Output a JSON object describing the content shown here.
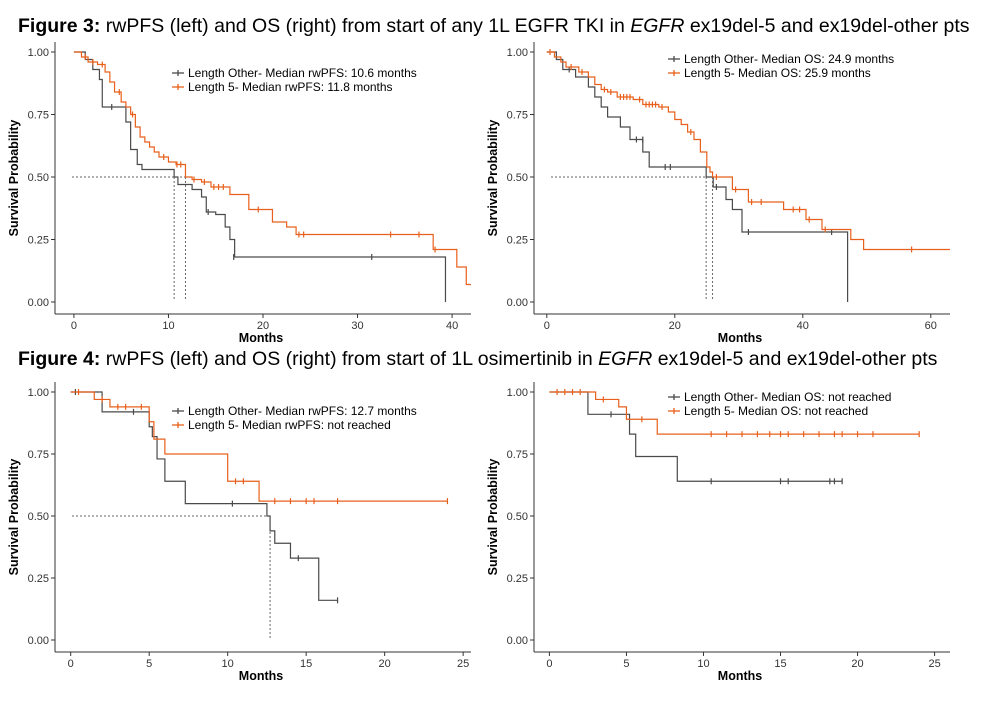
{
  "figure3": {
    "label": "Figure 3:",
    "text_a": " rwPFS (left) and OS (right) from start of any 1L EGFR TKI in ",
    "gene": "EGFR",
    "text_b": " ex19del-5 and ex19del-other pts"
  },
  "figure4": {
    "label": "Figure 4:",
    "text_a": " rwPFS (left) and OS (right) from start of 1L osimertinib in ",
    "gene": "EGFR",
    "text_b": " ex19del-5 and ex19del-other pts"
  },
  "colors": {
    "other": "#4a4a4a",
    "five": "#e8601c",
    "axis": "#333333",
    "ref": "#666666"
  },
  "chart_data": [
    {
      "type": "line",
      "subtype": "kaplan-meier",
      "xlabel": "Months",
      "ylabel": "Survival Probability",
      "xlim": [
        -2,
        42
      ],
      "ylim": [
        0,
        1
      ],
      "x_ticks": [
        0,
        10,
        20,
        30,
        40
      ],
      "y_ticks": [
        "0.00",
        "0.25",
        "0.50",
        "0.75",
        "1.00"
      ],
      "legend_position": "top-right",
      "median_lines": [
        10.6,
        11.8
      ],
      "series": [
        {
          "name": "Length Other- Median rwPFS: 10.6 months",
          "color_key": "other",
          "steps": [
            [
              0,
              1.0
            ],
            [
              1.2,
              0.97
            ],
            [
              2.0,
              0.93
            ],
            [
              2.7,
              0.89
            ],
            [
              3.0,
              0.78
            ],
            [
              5.5,
              0.72
            ],
            [
              6.0,
              0.61
            ],
            [
              6.7,
              0.55
            ],
            [
              7.2,
              0.53
            ],
            [
              10.6,
              0.5
            ],
            [
              11.0,
              0.47
            ],
            [
              12.5,
              0.45
            ],
            [
              13.5,
              0.42
            ],
            [
              14.0,
              0.36
            ],
            [
              15.0,
              0.35
            ],
            [
              16.0,
              0.3
            ],
            [
              16.5,
              0.25
            ],
            [
              17.0,
              0.18
            ],
            [
              39.3,
              0.18
            ],
            [
              39.3,
              0.0
            ]
          ],
          "censors": [
            [
              4.0,
              0.78
            ],
            [
              14.2,
              0.36
            ],
            [
              16.9,
              0.18
            ],
            [
              31.5,
              0.18
            ]
          ]
        },
        {
          "name": "Length 5- Median rwPFS: 11.8 months",
          "color_key": "five",
          "steps": [
            [
              0,
              1.0
            ],
            [
              0.8,
              0.98
            ],
            [
              1.5,
              0.96
            ],
            [
              2.5,
              0.95
            ],
            [
              3.3,
              0.92
            ],
            [
              3.8,
              0.88
            ],
            [
              4.3,
              0.84
            ],
            [
              5.0,
              0.8
            ],
            [
              5.5,
              0.78
            ],
            [
              6.0,
              0.75
            ],
            [
              6.5,
              0.7
            ],
            [
              7.0,
              0.66
            ],
            [
              7.5,
              0.64
            ],
            [
              8.0,
              0.62
            ],
            [
              8.5,
              0.6
            ],
            [
              9.0,
              0.58
            ],
            [
              10.0,
              0.56
            ],
            [
              10.8,
              0.55
            ],
            [
              11.8,
              0.5
            ],
            [
              12.5,
              0.49
            ],
            [
              13.5,
              0.48
            ],
            [
              14.5,
              0.46
            ],
            [
              16.5,
              0.43
            ],
            [
              18.5,
              0.37
            ],
            [
              21.0,
              0.32
            ],
            [
              22.5,
              0.3
            ],
            [
              23.5,
              0.27
            ],
            [
              38.0,
              0.21
            ],
            [
              40.5,
              0.14
            ],
            [
              41.5,
              0.07
            ],
            [
              42.0,
              0.07
            ]
          ],
          "censors": [
            [
              1.2,
              0.98
            ],
            [
              2.0,
              0.96
            ],
            [
              3.0,
              0.95
            ],
            [
              4.8,
              0.84
            ],
            [
              6.2,
              0.75
            ],
            [
              9.5,
              0.58
            ],
            [
              10.9,
              0.55
            ],
            [
              11.3,
              0.55
            ],
            [
              12.7,
              0.49
            ],
            [
              13.8,
              0.48
            ],
            [
              14.8,
              0.46
            ],
            [
              15.3,
              0.46
            ],
            [
              15.8,
              0.46
            ],
            [
              19.5,
              0.37
            ],
            [
              23.8,
              0.27
            ],
            [
              24.3,
              0.27
            ],
            [
              33.5,
              0.27
            ],
            [
              36.5,
              0.27
            ],
            [
              38.2,
              0.21
            ]
          ]
        }
      ]
    },
    {
      "type": "line",
      "subtype": "kaplan-meier",
      "xlabel": "Months",
      "ylabel": "Survival Probability",
      "xlim": [
        -2,
        63
      ],
      "ylim": [
        0,
        1
      ],
      "x_ticks": [
        0,
        20,
        40,
        60
      ],
      "y_ticks": [
        "0.00",
        "0.25",
        "0.50",
        "0.75",
        "1.00"
      ],
      "legend_position": "top-right",
      "median_lines": [
        24.9,
        25.9
      ],
      "series": [
        {
          "name": "Length Other- Median OS: 24.9 months",
          "color_key": "other",
          "steps": [
            [
              0,
              1.0
            ],
            [
              1.5,
              0.97
            ],
            [
              2.5,
              0.93
            ],
            [
              4.5,
              0.9
            ],
            [
              6.5,
              0.86
            ],
            [
              7.5,
              0.82
            ],
            [
              8.5,
              0.78
            ],
            [
              9.5,
              0.74
            ],
            [
              11.5,
              0.7
            ],
            [
              13.0,
              0.65
            ],
            [
              15.0,
              0.6
            ],
            [
              16.0,
              0.54
            ],
            [
              24.9,
              0.5
            ],
            [
              26.0,
              0.46
            ],
            [
              28.0,
              0.41
            ],
            [
              29.0,
              0.37
            ],
            [
              30.5,
              0.28
            ],
            [
              47.0,
              0.28
            ],
            [
              47.0,
              0.0
            ]
          ],
          "censors": [
            [
              3.5,
              0.93
            ],
            [
              14.0,
              0.65
            ],
            [
              15.0,
              0.65
            ],
            [
              18.5,
              0.54
            ],
            [
              19.3,
              0.54
            ],
            [
              26.5,
              0.46
            ],
            [
              31.5,
              0.28
            ],
            [
              44.5,
              0.28
            ]
          ]
        },
        {
          "name": "Length 5- Median OS: 25.9 months",
          "color_key": "five",
          "steps": [
            [
              0,
              1.0
            ],
            [
              1.2,
              0.98
            ],
            [
              2.2,
              0.96
            ],
            [
              3.0,
              0.94
            ],
            [
              5.0,
              0.92
            ],
            [
              6.5,
              0.9
            ],
            [
              7.5,
              0.87
            ],
            [
              8.5,
              0.85
            ],
            [
              9.5,
              0.84
            ],
            [
              11.0,
              0.82
            ],
            [
              13.5,
              0.81
            ],
            [
              15.0,
              0.79
            ],
            [
              17.5,
              0.78
            ],
            [
              19.0,
              0.76
            ],
            [
              20.0,
              0.73
            ],
            [
              21.0,
              0.71
            ],
            [
              22.0,
              0.68
            ],
            [
              23.0,
              0.65
            ],
            [
              24.0,
              0.6
            ],
            [
              25.0,
              0.54
            ],
            [
              25.5,
              0.52
            ],
            [
              25.9,
              0.5
            ],
            [
              29.0,
              0.45
            ],
            [
              31.5,
              0.4
            ],
            [
              37.0,
              0.37
            ],
            [
              40.5,
              0.33
            ],
            [
              43.0,
              0.29
            ],
            [
              47.5,
              0.25
            ],
            [
              49.5,
              0.21
            ],
            [
              63.0,
              0.21
            ]
          ],
          "censors": [
            [
              0.5,
              1.0
            ],
            [
              3.8,
              0.94
            ],
            [
              5.5,
              0.92
            ],
            [
              9.0,
              0.85
            ],
            [
              10.0,
              0.84
            ],
            [
              11.5,
              0.82
            ],
            [
              12.0,
              0.82
            ],
            [
              12.5,
              0.82
            ],
            [
              13.0,
              0.82
            ],
            [
              14.5,
              0.81
            ],
            [
              15.5,
              0.79
            ],
            [
              16.0,
              0.79
            ],
            [
              16.5,
              0.79
            ],
            [
              17.0,
              0.79
            ],
            [
              18.0,
              0.78
            ],
            [
              22.5,
              0.68
            ],
            [
              26.5,
              0.5
            ],
            [
              29.5,
              0.45
            ],
            [
              32.0,
              0.4
            ],
            [
              33.5,
              0.4
            ],
            [
              38.5,
              0.37
            ],
            [
              39.5,
              0.37
            ],
            [
              41.0,
              0.33
            ],
            [
              43.5,
              0.29
            ],
            [
              57.0,
              0.21
            ]
          ]
        }
      ]
    },
    {
      "type": "line",
      "subtype": "kaplan-meier",
      "xlabel": "Months",
      "ylabel": "Survival Probability",
      "xlim": [
        -1,
        25.5
      ],
      "ylim": [
        0,
        1
      ],
      "x_ticks": [
        0,
        5,
        10,
        15,
        20,
        25
      ],
      "y_ticks": [
        "0.00",
        "0.25",
        "0.50",
        "0.75",
        "1.00"
      ],
      "legend_position": "top-right",
      "median_lines": [
        12.7
      ],
      "series": [
        {
          "name": "Length Other- Median rwPFS: 12.7 months",
          "color_key": "other",
          "steps": [
            [
              0,
              1.0
            ],
            [
              2.0,
              0.92
            ],
            [
              5.0,
              0.86
            ],
            [
              5.2,
              0.82
            ],
            [
              5.5,
              0.73
            ],
            [
              6.0,
              0.64
            ],
            [
              7.3,
              0.55
            ],
            [
              12.5,
              0.5
            ],
            [
              12.7,
              0.44
            ],
            [
              13.0,
              0.39
            ],
            [
              14.0,
              0.33
            ],
            [
              15.8,
              0.16
            ],
            [
              17.0,
              0.16
            ]
          ],
          "censors": [
            [
              0.3,
              1.0
            ],
            [
              4.0,
              0.92
            ],
            [
              10.3,
              0.55
            ],
            [
              14.5,
              0.33
            ],
            [
              17.0,
              0.16
            ]
          ]
        },
        {
          "name": "Length 5- Median rwPFS: not reached",
          "color_key": "five",
          "steps": [
            [
              0,
              1.0
            ],
            [
              1.5,
              0.97
            ],
            [
              2.5,
              0.94
            ],
            [
              5.0,
              0.88
            ],
            [
              5.3,
              0.81
            ],
            [
              6.0,
              0.75
            ],
            [
              10.0,
              0.64
            ],
            [
              12.0,
              0.56
            ],
            [
              24.0,
              0.56
            ]
          ],
          "censors": [
            [
              0.5,
              1.0
            ],
            [
              2.0,
              0.97
            ],
            [
              3.0,
              0.94
            ],
            [
              3.5,
              0.94
            ],
            [
              4.5,
              0.94
            ],
            [
              10.5,
              0.64
            ],
            [
              11.0,
              0.64
            ],
            [
              13.0,
              0.56
            ],
            [
              14.0,
              0.56
            ],
            [
              15.0,
              0.56
            ],
            [
              15.5,
              0.56
            ],
            [
              17.0,
              0.56
            ],
            [
              24.0,
              0.56
            ]
          ]
        }
      ]
    },
    {
      "type": "line",
      "subtype": "kaplan-meier",
      "xlabel": "Months",
      "ylabel": "Survival Probability",
      "xlim": [
        -1,
        26
      ],
      "ylim": [
        0,
        1
      ],
      "x_ticks": [
        0,
        5,
        10,
        15,
        20,
        25
      ],
      "y_ticks": [
        "0.00",
        "0.25",
        "0.50",
        "0.75",
        "1.00"
      ],
      "legend_position": "top-right",
      "median_lines": [],
      "series": [
        {
          "name": "Length Other- Median OS: not reached",
          "color_key": "other",
          "steps": [
            [
              0,
              1.0
            ],
            [
              2.5,
              0.91
            ],
            [
              5.2,
              0.83
            ],
            [
              5.6,
              0.74
            ],
            [
              8.3,
              0.64
            ],
            [
              19.0,
              0.64
            ]
          ],
          "censors": [
            [
              4.0,
              0.91
            ],
            [
              10.5,
              0.64
            ],
            [
              15.0,
              0.64
            ],
            [
              15.5,
              0.64
            ],
            [
              18.2,
              0.64
            ],
            [
              18.5,
              0.64
            ],
            [
              19.0,
              0.64
            ]
          ]
        },
        {
          "name": "Length 5- Median OS: not reached",
          "color_key": "five",
          "steps": [
            [
              0,
              1.0
            ],
            [
              3.0,
              0.97
            ],
            [
              4.5,
              0.94
            ],
            [
              5.0,
              0.89
            ],
            [
              7.0,
              0.83
            ],
            [
              24.0,
              0.83
            ]
          ],
          "censors": [
            [
              0.5,
              1.0
            ],
            [
              1.0,
              1.0
            ],
            [
              1.5,
              1.0
            ],
            [
              2.0,
              1.0
            ],
            [
              3.5,
              0.97
            ],
            [
              6.0,
              0.89
            ],
            [
              10.5,
              0.83
            ],
            [
              11.5,
              0.83
            ],
            [
              12.5,
              0.83
            ],
            [
              13.5,
              0.83
            ],
            [
              14.3,
              0.83
            ],
            [
              15.0,
              0.83
            ],
            [
              15.5,
              0.83
            ],
            [
              16.5,
              0.83
            ],
            [
              17.5,
              0.83
            ],
            [
              18.5,
              0.83
            ],
            [
              19.0,
              0.83
            ],
            [
              20.0,
              0.83
            ],
            [
              21.0,
              0.83
            ],
            [
              24.0,
              0.83
            ]
          ]
        }
      ]
    }
  ]
}
